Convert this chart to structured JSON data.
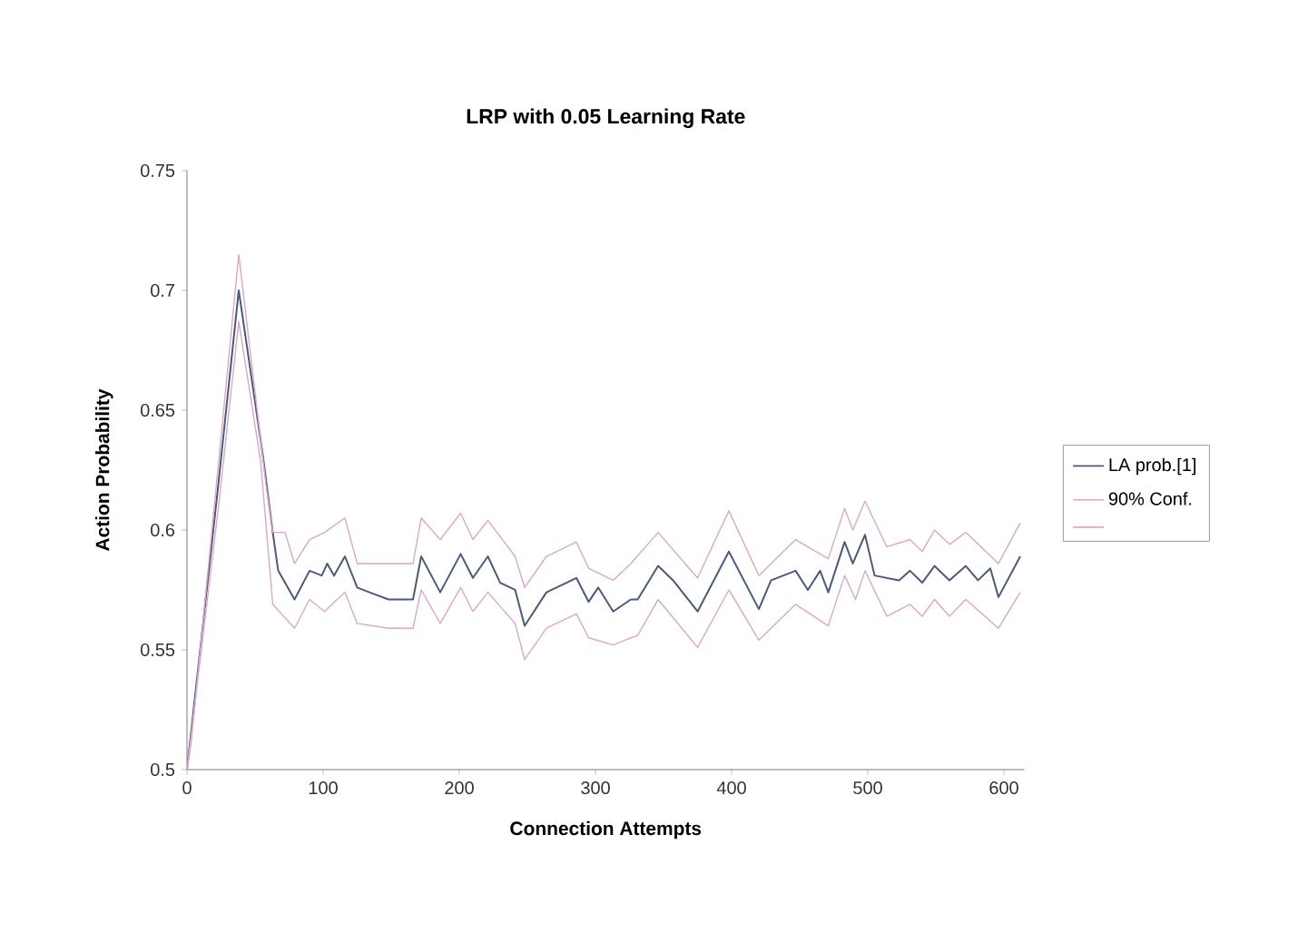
{
  "chart_data": {
    "type": "line",
    "title": "LRP with 0.05 Learning Rate",
    "xlabel": "Connection Attempts",
    "ylabel": "Action Probability",
    "xlim": [
      0,
      615
    ],
    "xticks": [
      0,
      100,
      200,
      300,
      400,
      500,
      600
    ],
    "ylim": [
      0.5,
      0.75
    ],
    "yticks": [
      0.5,
      0.55,
      0.6,
      0.65,
      0.7,
      0.75
    ],
    "legend": "right",
    "grid": false,
    "marker": "none",
    "line_style": "solid",
    "series": [
      {
        "name": "LA prob.[1]",
        "color": "#4a5a78",
        "x": [
          0,
          23,
          38,
          56,
          63,
          67,
          79,
          90,
          99,
          103,
          108,
          116,
          125,
          134,
          148,
          166,
          172,
          186,
          201,
          210,
          221,
          230,
          241,
          248,
          264,
          286,
          295,
          302,
          313,
          326,
          331,
          346,
          357,
          375,
          398,
          420,
          429,
          447,
          456,
          465,
          471,
          483,
          489,
          498,
          505,
          523,
          531,
          540,
          549,
          560,
          572,
          581,
          590,
          596,
          612
        ],
        "values": [
          0.5,
          0.619,
          0.7,
          0.63,
          0.599,
          0.583,
          0.571,
          0.583,
          0.581,
          0.586,
          0.581,
          0.589,
          0.576,
          0.574,
          0.571,
          0.571,
          0.589,
          0.574,
          0.59,
          0.58,
          0.589,
          0.578,
          0.575,
          0.56,
          0.574,
          0.58,
          0.57,
          0.576,
          0.566,
          0.571,
          0.571,
          0.585,
          0.579,
          0.566,
          0.591,
          0.567,
          0.579,
          0.583,
          0.575,
          0.583,
          0.574,
          0.595,
          0.586,
          0.598,
          0.581,
          0.579,
          0.583,
          0.578,
          0.585,
          0.579,
          0.585,
          0.579,
          0.584,
          0.572,
          0.589
        ]
      },
      {
        "name": "90% Conf.",
        "color": "#d8a8c8",
        "x": [
          0,
          3,
          23,
          38,
          58,
          63,
          72,
          79,
          90,
          101,
          116,
          125,
          148,
          166,
          172,
          186,
          201,
          210,
          221,
          241,
          248,
          264,
          286,
          295,
          313,
          326,
          346,
          375,
          398,
          420,
          447,
          471,
          483,
          489,
          498,
          514,
          531,
          540,
          549,
          560,
          572,
          596,
          612
        ],
        "values": [
          0.5,
          0.511,
          0.627,
          0.715,
          0.619,
          0.599,
          0.599,
          0.586,
          0.596,
          0.599,
          0.605,
          0.586,
          0.586,
          0.586,
          0.605,
          0.596,
          0.607,
          0.596,
          0.604,
          0.589,
          0.576,
          0.589,
          0.595,
          0.584,
          0.579,
          0.586,
          0.599,
          0.58,
          0.608,
          0.581,
          0.596,
          0.588,
          0.609,
          0.6,
          0.612,
          0.593,
          0.596,
          0.591,
          0.6,
          0.594,
          0.599,
          0.586,
          0.603
        ]
      },
      {
        "color": "#d8a8c8",
        "x": [
          0,
          23,
          38,
          54,
          63,
          79,
          90,
          101,
          116,
          125,
          148,
          166,
          172,
          186,
          201,
          210,
          221,
          241,
          248,
          264,
          286,
          295,
          313,
          326,
          331,
          346,
          375,
          398,
          420,
          447,
          471,
          483,
          491,
          498,
          514,
          531,
          540,
          549,
          560,
          572,
          596,
          612
        ],
        "values": [
          0.5,
          0.609,
          0.687,
          0.629,
          0.569,
          0.559,
          0.571,
          0.566,
          0.574,
          0.561,
          0.559,
          0.559,
          0.575,
          0.561,
          0.576,
          0.566,
          0.574,
          0.561,
          0.546,
          0.559,
          0.565,
          0.555,
          0.552,
          0.555,
          0.556,
          0.571,
          0.551,
          0.575,
          0.554,
          0.569,
          0.56,
          0.581,
          0.571,
          0.583,
          0.564,
          0.569,
          0.564,
          0.571,
          0.564,
          0.571,
          0.559,
          0.574
        ]
      }
    ]
  }
}
